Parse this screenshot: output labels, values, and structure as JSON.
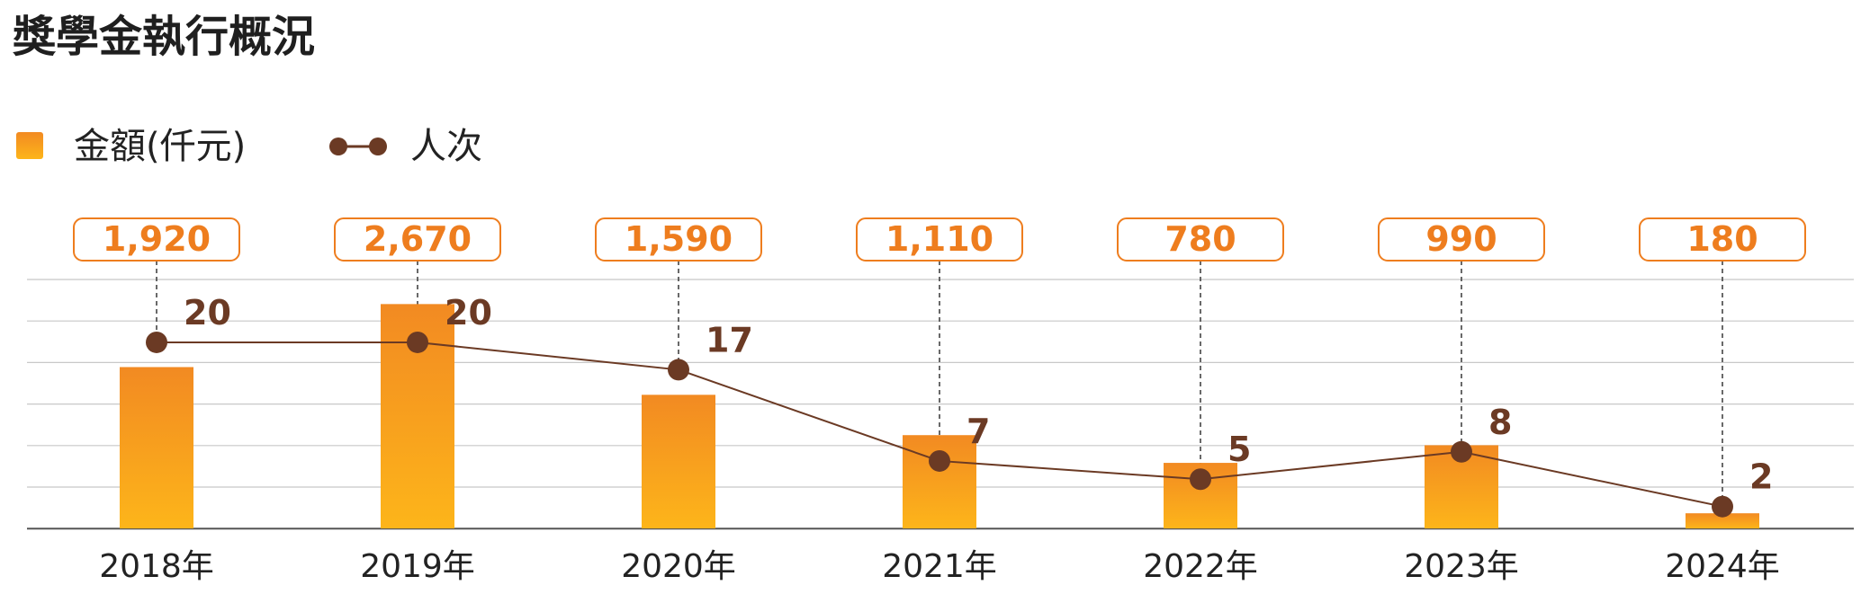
{
  "chart_data": {
    "type": "bar",
    "title": "獎學金執行概況",
    "categories": [
      "2018年",
      "2019年",
      "2020年",
      "2021年",
      "2022年",
      "2023年",
      "2024年"
    ],
    "series": [
      {
        "name": "金額(仟元)",
        "type": "bar",
        "values": [
          1920,
          2670,
          1590,
          1110,
          780,
          990,
          180
        ],
        "labels": [
          "1,920",
          "2,670",
          "1,590",
          "1,110",
          "780",
          "990",
          "180"
        ]
      },
      {
        "name": "人次",
        "type": "line",
        "values": [
          20,
          20,
          17,
          7,
          5,
          8,
          2
        ],
        "labels": [
          "20",
          "20",
          "17",
          "7",
          "5",
          "8",
          "2"
        ]
      }
    ],
    "legend": {
      "position": "top-left",
      "bar_label": "金額",
      "bar_unit": "(仟元)",
      "line_label": "人次"
    },
    "y_left_range": [
      0,
      3000
    ],
    "y_right_range": [
      0,
      30
    ],
    "grid": true
  },
  "colors": {
    "bar_top": "#F28A22",
    "bar_bottom": "#FDB51A",
    "line": "#6B3A24",
    "marker": "#6B3A24",
    "label_border": "#EE7D1E",
    "label_text": "#EE7D1E",
    "line_label_text": "#6B3A24",
    "title": "#1f1f1f",
    "axis_text": "#222222",
    "grid": "#c8c8c8"
  }
}
